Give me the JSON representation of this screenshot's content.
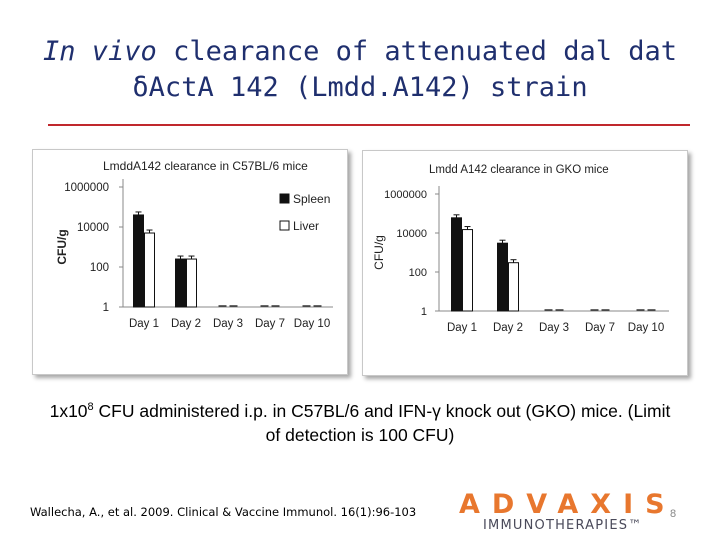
{
  "slide": {
    "title_line1_pre": "In vivo",
    "title_line1_post": "clearance of attenuated dal dat",
    "title_line2": "δActA 142 (Lmdd.A142) strain",
    "caption_pre": "1x10",
    "caption_exp": "8",
    "caption_post": " CFU administered i.p. in C57BL/6 and IFN-γ knock out (GKO) mice. (Limit of detection is 100 CFU)",
    "citation": "Wallecha, A., et al. 2009. Clinical & Vaccine Immunol. 16(1):96-103",
    "logo_text": "ADVAXIS",
    "logo_subtext": "IMMUNOTHERAPIES™",
    "page_number": "8",
    "accent_color": "#c0282d",
    "title_color": "#1f2f6e",
    "logo_color": "#e8772e"
  },
  "chart_data": [
    {
      "type": "bar",
      "title": "LmddA142  clearance in C57BL/6 mice",
      "ylabel": "CFU/g",
      "xlabel": "",
      "yscale": "log",
      "ylim": [
        1,
        1000000
      ],
      "yticks": [
        1,
        100,
        10000,
        1000000
      ],
      "ytick_labels": [
        "1",
        "100",
        "10000",
        "1000000"
      ],
      "categories": [
        "Day 1",
        "Day 2",
        "Day 3",
        "Day 7",
        "Day 10"
      ],
      "legend_position": "right",
      "grid": false,
      "series": [
        {
          "name": "Spleen",
          "color": "#111111",
          "values": [
            40000,
            250,
            1,
            1,
            1
          ]
        },
        {
          "name": "Liver",
          "color": "#ffffff",
          "values": [
            5000,
            250,
            1,
            1,
            1
          ]
        }
      ]
    },
    {
      "type": "bar",
      "title": "Lmdd A142 clearance  in GKO mice",
      "ylabel": "CFU/g",
      "xlabel": "",
      "yscale": "log",
      "ylim": [
        1,
        1000000
      ],
      "yticks": [
        1,
        100,
        10000,
        1000000
      ],
      "ytick_labels": [
        "1",
        "100",
        "10000",
        "1000000"
      ],
      "categories": [
        "Day 1",
        "Day 2",
        "Day 3",
        "Day 7",
        "Day 10"
      ],
      "legend_position": "none",
      "grid": false,
      "series": [
        {
          "name": "",
          "color": "#111111",
          "values": [
            60000,
            3000,
            1,
            1,
            1
          ]
        },
        {
          "name": "",
          "color": "#ffffff",
          "values": [
            15000,
            300,
            1,
            1,
            1
          ]
        }
      ]
    }
  ]
}
